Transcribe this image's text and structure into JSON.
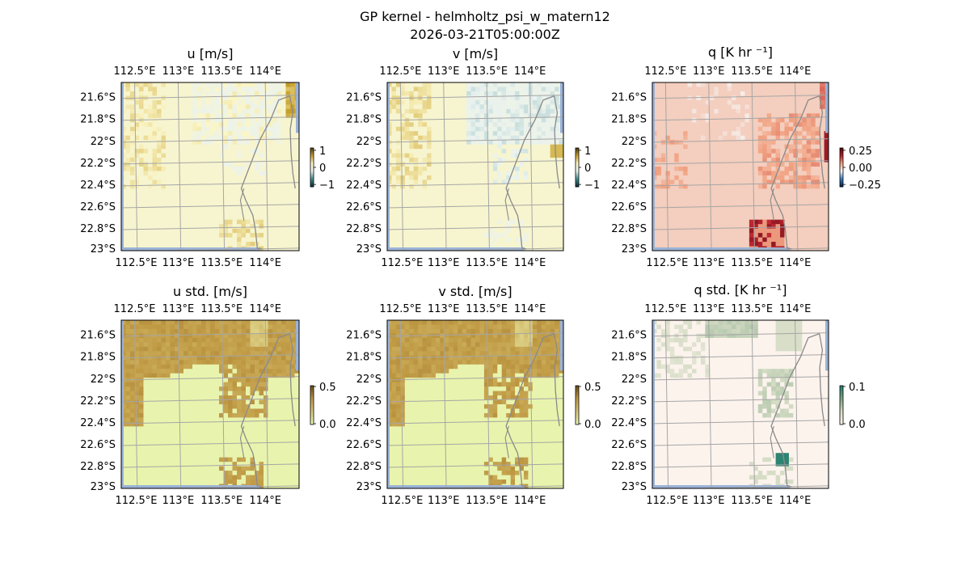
{
  "figure": {
    "title_line1": "GP kernel - helmholtz_psi_w_matern12",
    "title_line2": "2026-03-21T05:00:00Z"
  },
  "chart_data": [
    {
      "type": "heatmap",
      "title": "u [m/s]",
      "top_ticks": [
        "112.5°E",
        "113°E",
        "113.5°E",
        "114°E"
      ],
      "bottom_ticks": [
        "112.5°E",
        "113°E",
        "113.5°E",
        "114°E"
      ],
      "left_ticks": [
        "21.6°S",
        "21.8°S",
        "22°S",
        "22.2°S",
        "22.4°S",
        "22.6°S",
        "22.8°S",
        "23°S"
      ],
      "colorbar": {
        "ticks": [
          "1",
          "0",
          "−1"
        ],
        "range": [
          -1,
          1
        ],
        "colors": [
          "#0b2a3a",
          "#3f8f8a",
          "#e9f2f0",
          "#fbf6c7",
          "#caa32e",
          "#4a3a10"
        ]
      },
      "background": "#fffdcc"
    },
    {
      "type": "heatmap",
      "title": "v [m/s]",
      "top_ticks": [
        "112.5°E",
        "113°E",
        "113.5°E",
        "114°E"
      ],
      "bottom_ticks": [
        "112.5°E",
        "113°E",
        "113.5°E",
        "114°E"
      ],
      "left_ticks": [
        "21.6°S",
        "21.8°S",
        "22°S",
        "22.2°S",
        "22.4°S",
        "22.6°S",
        "22.8°S",
        "23°S"
      ],
      "colorbar": {
        "ticks": [
          "1",
          "0",
          "−1"
        ],
        "range": [
          -1,
          1
        ],
        "colors": [
          "#0b2a3a",
          "#3f8f8a",
          "#e9f2f0",
          "#fbf6c7",
          "#caa32e",
          "#4a3a10"
        ]
      },
      "background": "#fffdcc"
    },
    {
      "type": "heatmap",
      "title": "q [K hr ⁻¹]",
      "top_ticks": [
        "112.5°E",
        "113°E",
        "113.5°E",
        "114°E"
      ],
      "bottom_ticks": [
        "112.5°E",
        "113°E",
        "113.5°E",
        "114°E"
      ],
      "left_ticks": [
        "21.6°S",
        "21.8°S",
        "22°S",
        "22.2°S",
        "22.4°S",
        "22.6°S",
        "22.8°S",
        "23°S"
      ],
      "colorbar": {
        "ticks": [
          "0.25",
          "0.00",
          "−0.25"
        ],
        "range": [
          -0.35,
          0.35
        ],
        "colors": [
          "#0a1a3a",
          "#3a7bbf",
          "#f6f6f6",
          "#f2a585",
          "#b9212d",
          "#4a0a10"
        ]
      },
      "background": "#f5f5f5"
    },
    {
      "type": "heatmap",
      "title": "u std. [m/s]",
      "top_ticks": [
        "112.5°E",
        "113°E",
        "113.5°E",
        "114°E"
      ],
      "bottom_ticks": [
        "112.5°E",
        "113°E",
        "113.5°E",
        "114°E"
      ],
      "left_ticks": [
        "21.6°S",
        "21.8°S",
        "22°S",
        "22.2°S",
        "22.4°S",
        "22.6°S",
        "22.8°S",
        "23°S"
      ],
      "colorbar": {
        "ticks": [
          "0.5",
          "0.0"
        ],
        "range": [
          0,
          0.5
        ],
        "colors": [
          "#e9f7b0",
          "#d8c77a",
          "#c09a44",
          "#6a4a18"
        ]
      },
      "background": "#e8f5b0"
    },
    {
      "type": "heatmap",
      "title": "v std. [m/s]",
      "top_ticks": [
        "112.5°E",
        "113°E",
        "113.5°E",
        "114°E"
      ],
      "bottom_ticks": [
        "112.5°E",
        "113°E",
        "113.5°E",
        "114°E"
      ],
      "left_ticks": [
        "21.6°S",
        "21.8°S",
        "22°S",
        "22.2°S",
        "22.4°S",
        "22.6°S",
        "22.8°S",
        "23°S"
      ],
      "colorbar": {
        "ticks": [
          "0.5",
          "0.0"
        ],
        "range": [
          0,
          0.5
        ],
        "colors": [
          "#e9f7b0",
          "#d8c77a",
          "#c09a44",
          "#6a4a18"
        ]
      },
      "background": "#e8f5b0"
    },
    {
      "type": "heatmap",
      "title": "q std. [K hr ⁻¹]",
      "top_ticks": [
        "112.5°E",
        "113°E",
        "113.5°E",
        "114°E"
      ],
      "bottom_ticks": [
        "112.5°E",
        "113°E",
        "113.5°E",
        "114°E"
      ],
      "left_ticks": [
        "21.6°S",
        "21.8°S",
        "22°S",
        "22.2°S",
        "22.4°S",
        "22.6°S",
        "22.8°S",
        "23°S"
      ],
      "colorbar": {
        "ticks": [
          "0.1",
          "0.0"
        ],
        "range": [
          0,
          0.1
        ],
        "colors": [
          "#fff4f0",
          "#d4dcc4",
          "#7fa586",
          "#1f7d6e"
        ]
      },
      "background": "#fff4f0"
    }
  ]
}
